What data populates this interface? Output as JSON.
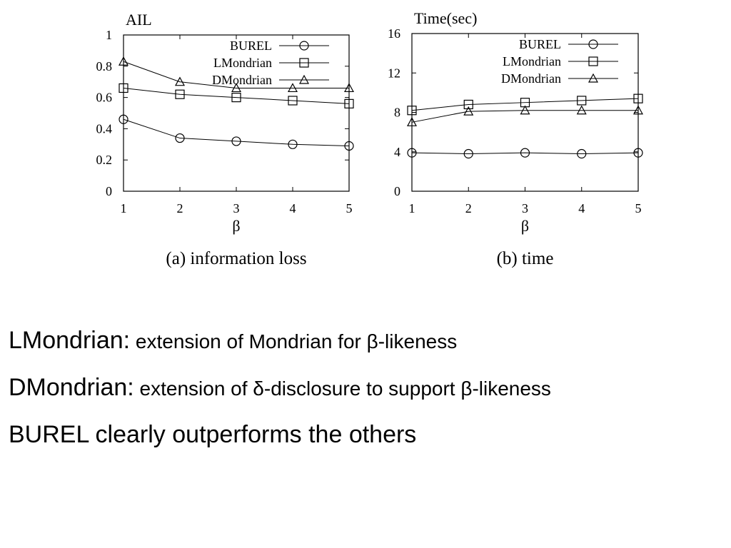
{
  "chart_data": [
    {
      "type": "line",
      "title": "",
      "ylabel": "AIL",
      "xlabel": "β",
      "caption": "(a) information loss",
      "x": [
        1,
        2,
        3,
        4,
        5
      ],
      "xlim": [
        1,
        5
      ],
      "ylim": [
        0,
        1.0
      ],
      "yticks": [
        0,
        0.2,
        0.4,
        0.6,
        0.8,
        1
      ],
      "ytick_labels": [
        "0",
        "0.2",
        "0.4",
        "0.6",
        "0.8",
        "1"
      ],
      "legend": "top-right",
      "grid": false,
      "series": [
        {
          "name": "BUREL",
          "marker": "circle",
          "values": [
            0.46,
            0.34,
            0.32,
            0.3,
            0.29
          ]
        },
        {
          "name": "LMondrian",
          "marker": "square",
          "values": [
            0.66,
            0.62,
            0.6,
            0.58,
            0.56
          ]
        },
        {
          "name": "DMondrian",
          "marker": "triangle",
          "values": [
            0.83,
            0.7,
            0.66,
            0.66,
            0.66
          ]
        }
      ]
    },
    {
      "type": "line",
      "title": "",
      "ylabel": "Time(sec)",
      "xlabel": "β",
      "caption": "(b) time",
      "x": [
        1,
        2,
        3,
        4,
        5
      ],
      "xlim": [
        1,
        5
      ],
      "ylim": [
        0,
        16
      ],
      "yticks": [
        0,
        4,
        8,
        12,
        16
      ],
      "ytick_labels": [
        "0",
        "4",
        "8",
        "12",
        "16"
      ],
      "legend": "top-right",
      "grid": false,
      "series": [
        {
          "name": "BUREL",
          "marker": "circle",
          "values": [
            3.9,
            3.8,
            3.9,
            3.8,
            3.9
          ]
        },
        {
          "name": "LMondrian",
          "marker": "square",
          "values": [
            8.2,
            8.8,
            9.0,
            9.2,
            9.4
          ]
        },
        {
          "name": "DMondrian",
          "marker": "triangle",
          "values": [
            7.0,
            8.1,
            8.2,
            8.2,
            8.2
          ]
        }
      ]
    }
  ],
  "bullets": [
    {
      "lead": "LMondrian:",
      "rest": " extension of Mondrian for β-likeness"
    },
    {
      "lead": "DMondrian:",
      "rest": " extension of δ-disclosure to support β-likeness"
    },
    {
      "lead": "BUREL clearly outperforms the others",
      "rest": ""
    }
  ]
}
